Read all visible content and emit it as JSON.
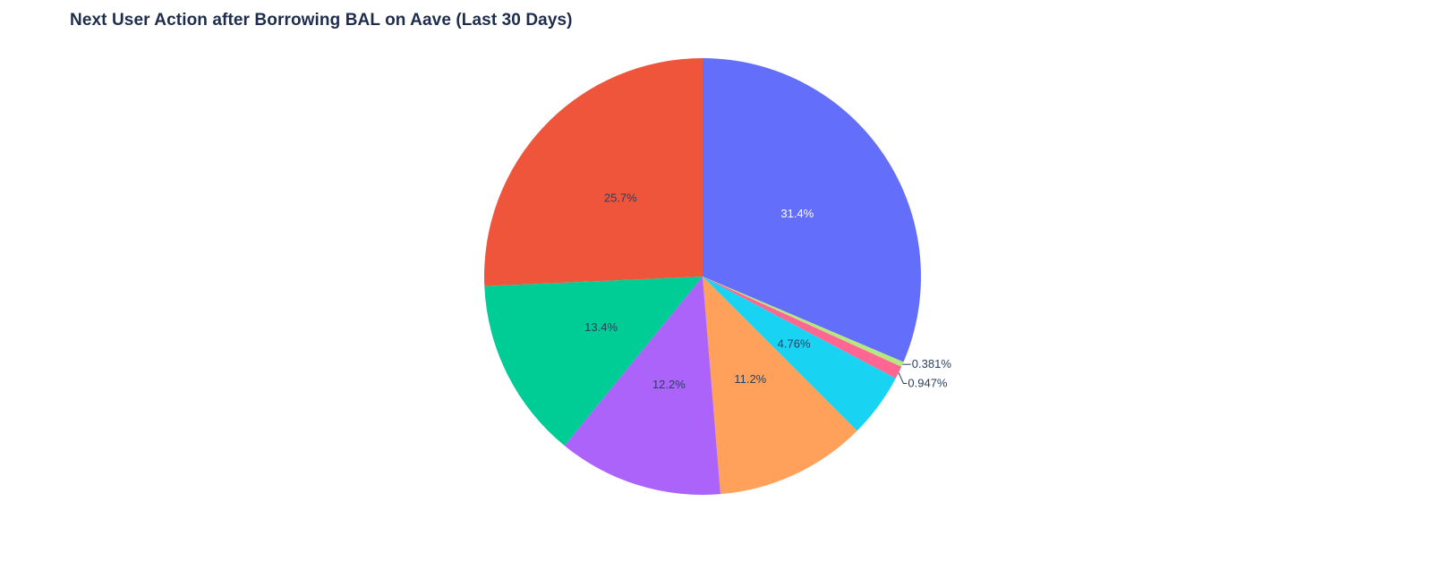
{
  "chart_data": {
    "type": "pie",
    "title": "Next User Action after Borrowing BAL on Aave (Last 30 Days)",
    "slices": [
      {
        "value": 31.4,
        "label": "31.4%",
        "color": "#636efa",
        "label_color": "#ffffff",
        "label_outside": false
      },
      {
        "value": 0.381,
        "label": "0.381%",
        "color": "#b6e880",
        "label_color": "#2a3f5f",
        "label_outside": true
      },
      {
        "value": 0.947,
        "label": "0.947%",
        "color": "#ff6692",
        "label_color": "#2a3f5f",
        "label_outside": true
      },
      {
        "value": 4.76,
        "label": "4.76%",
        "color": "#19d3f3",
        "label_color": "#2a3f5f",
        "label_outside": false
      },
      {
        "value": 11.2,
        "label": "11.2%",
        "color": "#ffa15a",
        "label_color": "#2a3f5f",
        "label_outside": false
      },
      {
        "value": 12.2,
        "label": "12.2%",
        "color": "#ab63fa",
        "label_color": "#2a3f5f",
        "label_outside": false
      },
      {
        "value": 13.4,
        "label": "13.4%",
        "color": "#00cc96",
        "label_color": "#2a3f5f",
        "label_outside": false
      },
      {
        "value": 25.7,
        "label": "25.7%",
        "color": "#ef553b",
        "label_color": "#2a3f5f",
        "label_outside": false
      }
    ],
    "start_angle": "top",
    "direction": "clockwise",
    "legend": "none"
  }
}
